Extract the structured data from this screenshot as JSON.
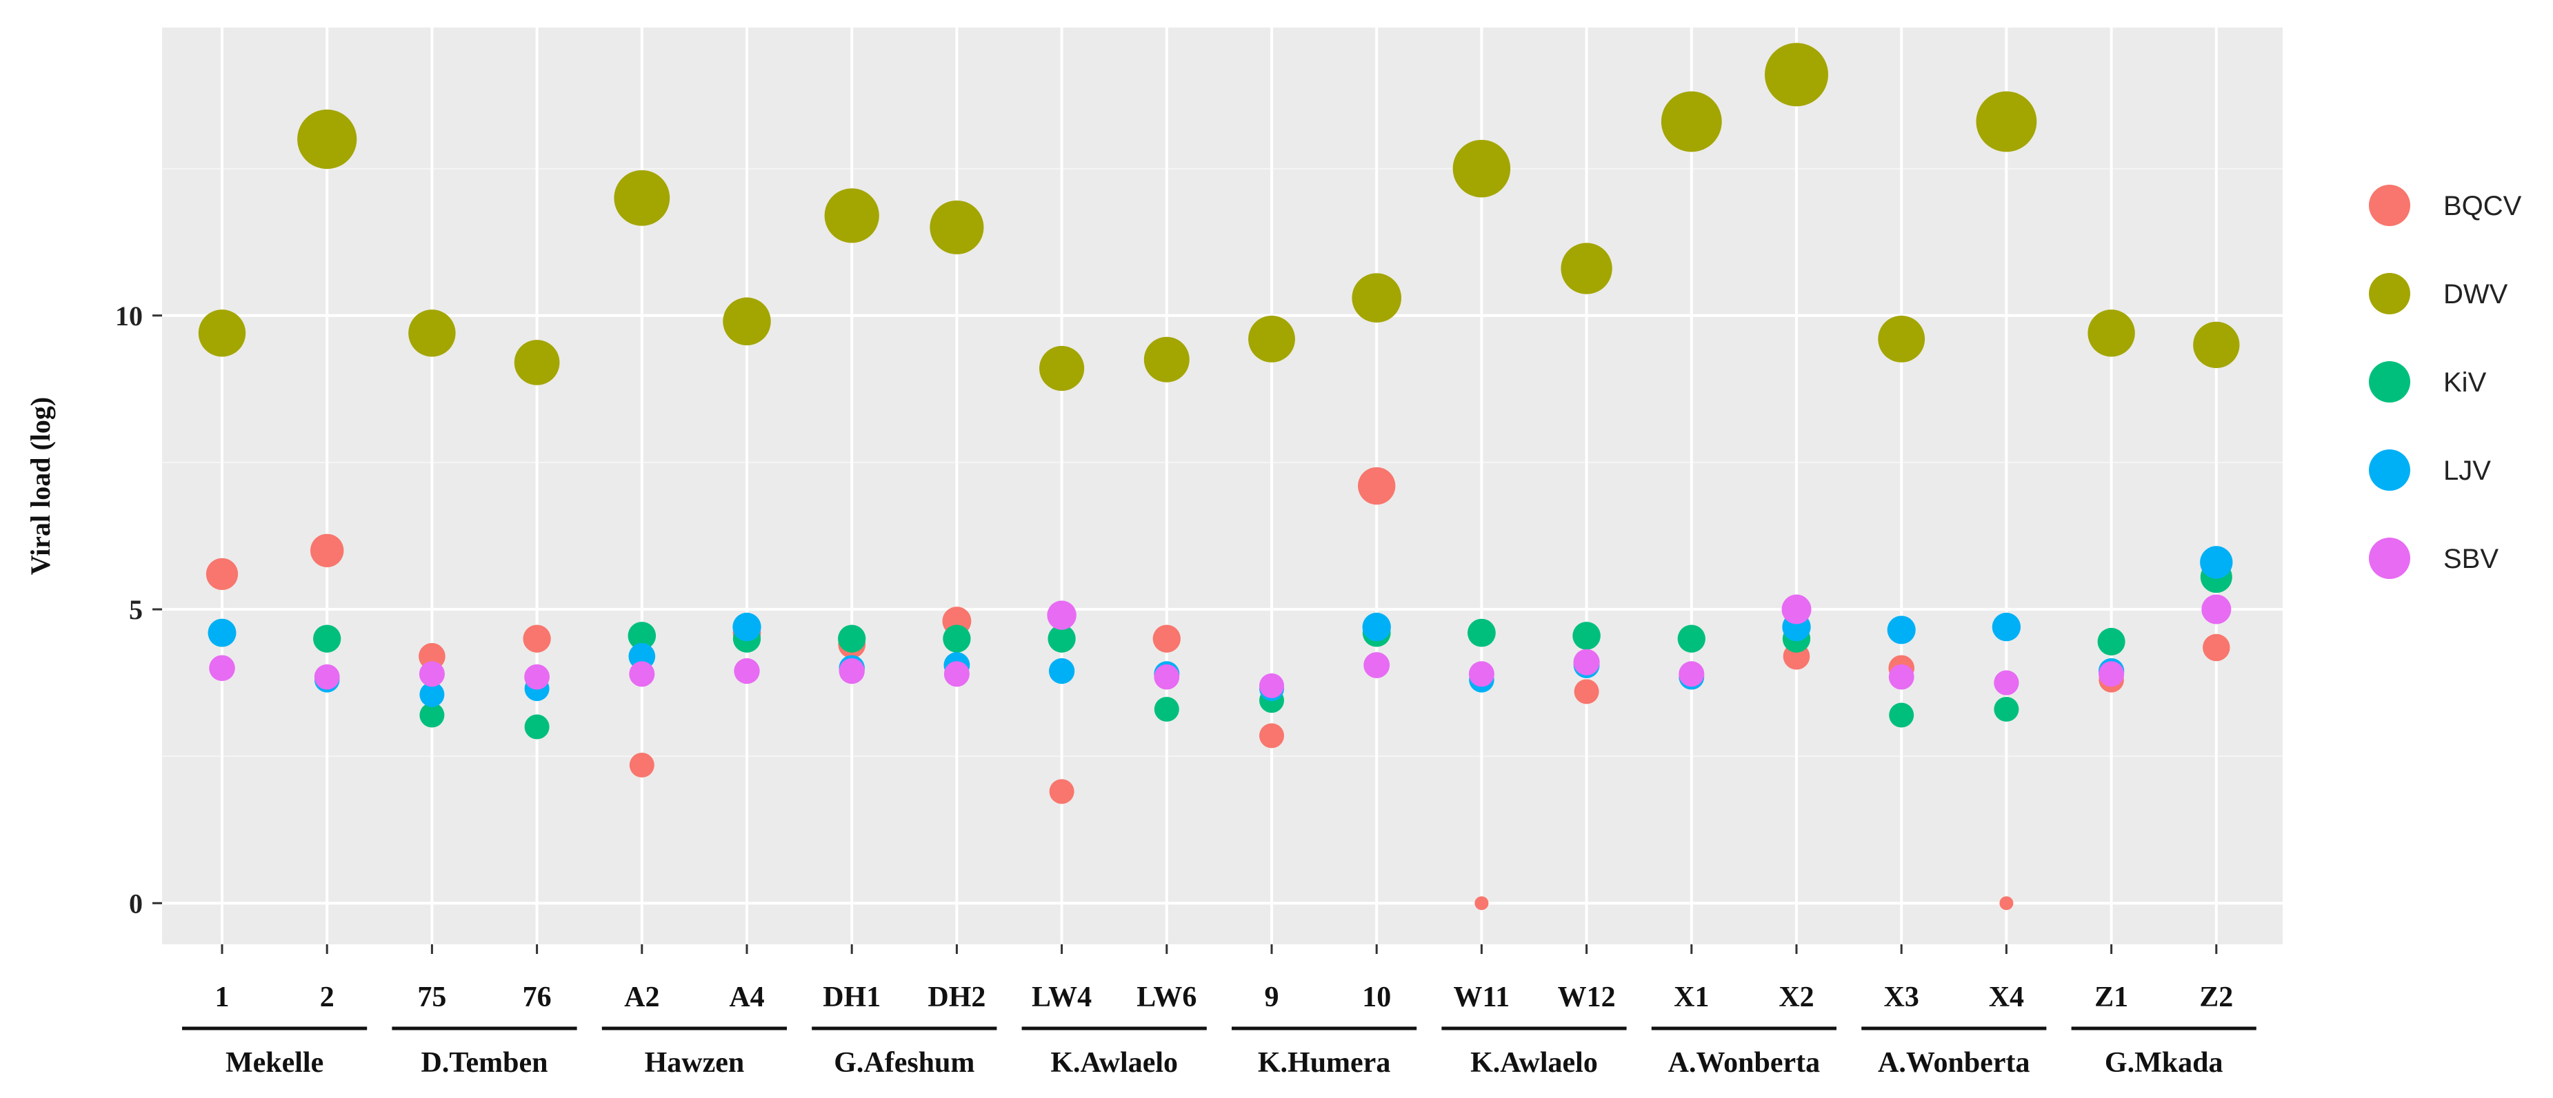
{
  "chart_data": {
    "type": "scatter",
    "ylabel": "Viral load (log)",
    "xlabel": "",
    "ylim": [
      -0.7,
      14.9
    ],
    "yticks": [
      0,
      5,
      10
    ],
    "grid": true,
    "legend_position": "right",
    "categories": [
      "1",
      "2",
      "75",
      "76",
      "A2",
      "A4",
      "DH1",
      "DH2",
      "LW4",
      "LW6",
      "9",
      "10",
      "W11",
      "W12",
      "X1",
      "X2",
      "X3",
      "X4",
      "Z1",
      "Z2"
    ],
    "groups": [
      {
        "label": "Mekelle",
        "members": [
          "1",
          "2"
        ]
      },
      {
        "label": "D.Temben",
        "members": [
          "75",
          "76"
        ]
      },
      {
        "label": "Hawzen",
        "members": [
          "A2",
          "A4"
        ]
      },
      {
        "label": "G.Afeshum",
        "members": [
          "DH1",
          "DH2"
        ]
      },
      {
        "label": "K.Awlaelo",
        "members": [
          "LW4",
          "LW6"
        ]
      },
      {
        "label": "K.Humera",
        "members": [
          "9",
          "10"
        ]
      },
      {
        "label": "K.Awlaelo",
        "members": [
          "W11",
          "W12"
        ]
      },
      {
        "label": "A.Wonberta",
        "members": [
          "X1",
          "X2"
        ]
      },
      {
        "label": "A.Wonberta",
        "members": [
          "X3",
          "X4"
        ]
      },
      {
        "label": "G.Mkada",
        "members": [
          "Z1",
          "Z2"
        ]
      }
    ],
    "series": [
      {
        "name": "BQCV",
        "color": "#F8766D",
        "values": [
          5.6,
          6.0,
          4.2,
          4.5,
          2.35,
          4.6,
          4.4,
          4.8,
          1.9,
          4.5,
          2.85,
          7.1,
          0.0,
          3.6,
          3.85,
          4.2,
          4.0,
          0.0,
          3.8,
          4.35
        ]
      },
      {
        "name": "DWV",
        "color": "#A3A500",
        "values": [
          9.7,
          13.0,
          9.7,
          9.2,
          12.0,
          9.9,
          11.7,
          11.5,
          9.1,
          9.25,
          9.6,
          10.3,
          12.5,
          10.8,
          13.3,
          14.1,
          9.6,
          13.3,
          9.7,
          9.5
        ]
      },
      {
        "name": "KiV",
        "color": "#00BF7D",
        "values": [
          4.6,
          4.5,
          3.2,
          3.0,
          4.55,
          4.5,
          4.5,
          4.5,
          4.5,
          3.3,
          3.45,
          4.6,
          4.6,
          4.55,
          4.5,
          4.5,
          3.2,
          3.3,
          4.45,
          5.55
        ]
      },
      {
        "name": "LJV",
        "color": "#00B0F6",
        "values": [
          4.6,
          3.8,
          3.55,
          3.65,
          4.2,
          4.7,
          4.0,
          4.05,
          3.95,
          3.9,
          3.65,
          4.7,
          3.8,
          4.05,
          3.85,
          4.7,
          4.65,
          4.7,
          3.95,
          5.8
        ]
      },
      {
        "name": "SBV",
        "color": "#E76BF3",
        "values": [
          4.0,
          3.85,
          3.9,
          3.85,
          3.9,
          3.95,
          3.95,
          3.9,
          4.9,
          3.85,
          3.7,
          4.05,
          3.9,
          4.1,
          3.9,
          5.0,
          3.85,
          3.75,
          3.9,
          5.0
        ]
      }
    ]
  }
}
